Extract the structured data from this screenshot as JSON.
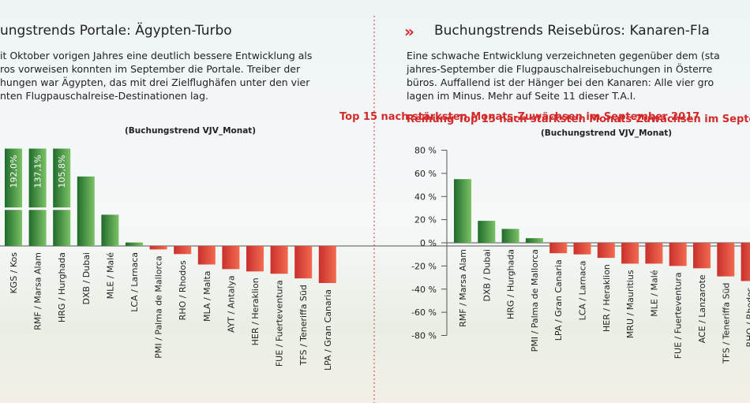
{
  "chart_data": [
    {
      "type": "bar",
      "title": "ungstrends Portale: Ägypten-Turbo",
      "text": [
        "it Oktober vorigen Jahres eine deutlich bessere Entwicklung als",
        "ros vorweisen konnten im September die Portale. Treiber der",
        "hungen war Ägypten, das mit drei Zielflughäfen unter den vier",
        "nten Flugpauschalreise-Destinationen lag."
      ],
      "subtitle": "Top 15 nach stärksten Monats-Zuwächsen im September 2017",
      "source": "(Buchungstrend VJV_Monat)",
      "categories": [
        "KGS / Kos",
        "RMF / Marsa Alam",
        "HRG / Hurghada",
        "DXB / Dubai",
        "MLE / Malé",
        "LCA / Larnaca",
        "PMI / Palma de Mallorca",
        "RHO / Rhodos",
        "MLA / Malta",
        "AYT / Antalya",
        "HER / Heraklion",
        "FUE / Fuerteventura",
        "TFS / Teneriffa Süd",
        "LPA / Gran Canaria"
      ],
      "values": [
        192.0,
        137.1,
        105.8,
        60,
        27,
        3,
        -3,
        -7,
        -16,
        -20,
        -22,
        -24,
        -28,
        -32
      ],
      "value_labels": [
        "192,0%",
        "137,1%",
        "105,8%",
        null,
        null,
        null,
        null,
        null,
        null,
        null,
        null,
        null,
        null,
        null
      ],
      "color_positive": "#2f8f3c",
      "color_negative": "#e0443a",
      "ylim": [
        -80,
        80
      ]
    },
    {
      "type": "bar",
      "title": "Buchungstrends Reisebüros: Kanaren-Fla",
      "text": [
        "Eine schwache Entwicklung verzeichneten gegenüber dem (sta",
        "jahres-September die Flugpauschalreisebuchungen in Österre",
        "büros. Auffallend ist der Hänger bei den Kanaren: Alle vier gro",
        "lagen im Minus. Mehr auf Seite 11 dieser T.A.I."
      ],
      "subtitle": "Reihung Top 15 nach stärksten Monats-Zuwächsen im Septe",
      "source": "(Buchungstrend VJV_Monat)",
      "categories": [
        "RMF / Marsa Alam",
        "DXB / Dubai",
        "HRG / Hurghada",
        "PMI / Palma de Mallorca",
        "LPA / Gran Canaria",
        "LCA / Larnaca",
        "HER / Heraklion",
        "MRU / Mauritius",
        "MLE / Malé",
        "FUE / Fuerteventura",
        "ACE / Lanzarote",
        "TFS / Teneriffa Süd",
        "RHO / Rhodos"
      ],
      "values": [
        55,
        19,
        12,
        4,
        -9,
        -10,
        -13,
        -18,
        -18,
        -20,
        -22,
        -29,
        -33
      ],
      "color_positive": "#2f8f3c",
      "color_negative": "#e0443a",
      "ylim": [
        -80,
        80
      ],
      "yticks": [
        {
          "value": 80,
          "label": "80 %"
        },
        {
          "value": 60,
          "label": "60 %"
        },
        {
          "value": 40,
          "label": "40 %"
        },
        {
          "value": 20,
          "label": "20 %"
        },
        {
          "value": 0,
          "label": "0 %"
        },
        {
          "value": -20,
          "label": "-20 %"
        },
        {
          "value": -40,
          "label": "-40 %"
        },
        {
          "value": -60,
          "label": "-60 %"
        },
        {
          "value": -80,
          "label": "-80 %"
        }
      ]
    }
  ]
}
